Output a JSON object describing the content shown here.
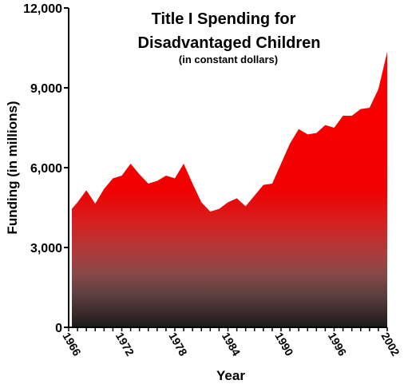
{
  "chart_data": {
    "type": "area",
    "title": "Title I Spending for",
    "title_line2": "Disadvantaged Children",
    "subtitle": "(in constant dollars)",
    "xlabel": "Year",
    "ylabel": "Funding (in millions)",
    "xlim": [
      1966,
      2002
    ],
    "ylim": [
      0,
      12000
    ],
    "y_ticks": [
      0,
      3000,
      6000,
      9000,
      12000
    ],
    "y_tick_labels": [
      "0",
      "3,000",
      "6,000",
      "9,000",
      "12,000"
    ],
    "x_ticks": [
      1966,
      1972,
      1978,
      1984,
      1990,
      1996,
      2002
    ],
    "x_tick_labels": [
      "1966",
      "1972",
      "1978",
      "1984",
      "1990",
      "1996",
      "2002"
    ],
    "grid": false,
    "series": [
      {
        "x": [
          1966,
          1967,
          1968,
          1969,
          1970,
          1971,
          1972,
          1973,
          1974,
          1975,
          1976,
          1977,
          1978,
          1979,
          1980,
          1981,
          1982,
          1983,
          1984,
          1985,
          1986,
          1987,
          1988,
          1989,
          1990,
          1991,
          1992,
          1993,
          1994,
          1995,
          1996,
          1997,
          1998,
          1999,
          2000,
          2001,
          2002
        ],
        "values": [
          4450,
          4700,
          5150,
          4650,
          5200,
          5600,
          5700,
          6150,
          5750,
          5400,
          5500,
          5700,
          5600,
          6150,
          5400,
          4700,
          4350,
          4450,
          4700,
          4850,
          4550,
          4950,
          5350,
          5400,
          6150,
          6900,
          7450,
          7250,
          7300,
          7600,
          7500,
          7950,
          7950,
          8200,
          8250,
          8950,
          10350
        ]
      }
    ],
    "colors": {
      "fill_top": "#ff0000",
      "fill_bottom": "#1a1a1a"
    }
  }
}
